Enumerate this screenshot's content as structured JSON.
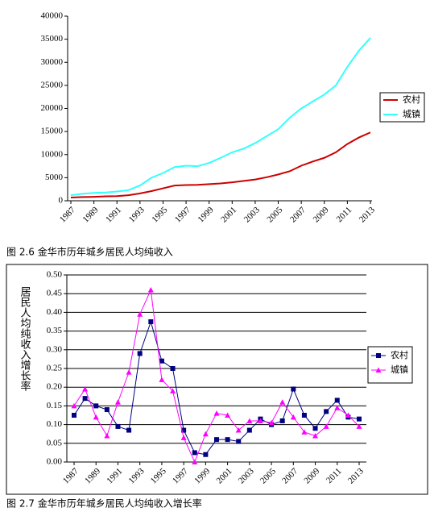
{
  "chart_data": [
    {
      "type": "line",
      "caption": "图 2.6  金华市历年城乡居民人均纯收入",
      "categories": [
        "1987",
        null,
        "1989",
        null,
        "1991",
        null,
        "1993",
        null,
        "1995",
        null,
        "1997",
        null,
        "1999",
        null,
        "2001",
        null,
        "2003",
        null,
        "2005",
        null,
        "2007",
        null,
        "2009",
        null,
        "2011",
        null,
        "2013"
      ],
      "series": [
        {
          "name": "农村",
          "color": "#cc0000",
          "values": [
            700,
            800,
            850,
            950,
            1000,
            1200,
            1600,
            2100,
            2700,
            3300,
            3400,
            3450,
            3600,
            3750,
            4000,
            4300,
            4600,
            5100,
            5700,
            6400,
            7600,
            8500,
            9300,
            10500,
            12300,
            13700,
            14800
          ]
        },
        {
          "name": "城镇",
          "color": "#33ffff",
          "values": [
            1200,
            1500,
            1700,
            1800,
            2000,
            2300,
            3300,
            5000,
            6000,
            7300,
            7600,
            7500,
            8200,
            9300,
            10500,
            11300,
            12500,
            14000,
            15500,
            18000,
            20000,
            21500,
            23000,
            25000,
            29000,
            32500,
            35300
          ]
        }
      ],
      "ylim": [
        0,
        40000
      ],
      "yticks": [
        0,
        5000,
        10000,
        15000,
        20000,
        25000,
        30000,
        35000,
        40000
      ],
      "grid": false
    },
    {
      "type": "line",
      "caption": "图 2.7  金华市历年城乡居民人均纯收入增长率",
      "y_label": "居民人均纯收入增长率",
      "categories": [
        "1987",
        null,
        "1989",
        null,
        "1991",
        null,
        "1993",
        null,
        "1995",
        null,
        "1997",
        null,
        "1999",
        null,
        "2001",
        null,
        "2003",
        null,
        "2005",
        null,
        "2007",
        null,
        "2009",
        null,
        "2011",
        null,
        "2013"
      ],
      "series": [
        {
          "name": "农村",
          "color": "#000080",
          "marker": "square",
          "values": [
            0.125,
            0.17,
            0.15,
            0.14,
            0.095,
            0.085,
            0.29,
            0.375,
            0.27,
            0.25,
            0.085,
            0.025,
            0.02,
            0.06,
            0.06,
            0.055,
            0.085,
            0.115,
            0.1,
            0.11,
            0.195,
            0.125,
            0.09,
            0.135,
            0.165,
            0.12,
            0.115
          ]
        },
        {
          "name": "城镇",
          "color": "#ff00ff",
          "marker": "triangle",
          "values": [
            0.15,
            0.195,
            0.12,
            0.07,
            0.16,
            0.24,
            0.395,
            0.46,
            0.22,
            0.19,
            0.065,
            0.0,
            0.075,
            0.13,
            0.125,
            0.085,
            0.11,
            0.11,
            0.105,
            0.16,
            0.12,
            0.08,
            0.07,
            0.095,
            0.145,
            0.125,
            0.095
          ]
        }
      ],
      "ylim": [
        0,
        0.5
      ],
      "yticks": [
        {
          "value": 0,
          "label": "0.00"
        },
        {
          "value": 0.05,
          "label": "0.05"
        },
        {
          "value": 0.1,
          "label": "0.10"
        },
        {
          "value": 0.15,
          "label": "0.15"
        },
        {
          "value": 0.2,
          "label": "0.20"
        },
        {
          "value": 0.25,
          "label": "0.25"
        },
        {
          "value": 0.3,
          "label": "0.30"
        },
        {
          "value": 0.35,
          "label": "0.35"
        },
        {
          "value": 0.4,
          "label": "0.40"
        },
        {
          "value": 0.45,
          "label": "0.45"
        },
        {
          "value": 0.5,
          "label": "0.50"
        }
      ],
      "grid": true
    }
  ]
}
